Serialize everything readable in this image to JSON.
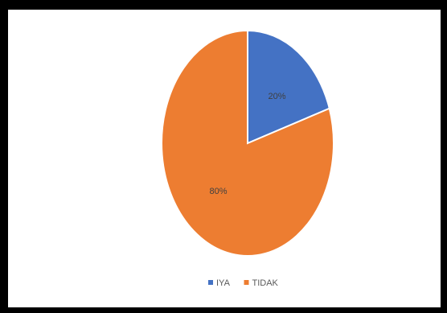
{
  "chart_data": {
    "type": "pie",
    "title": "",
    "start_angle_deg": 0,
    "direction": "clockwise",
    "slices": [
      {
        "name": "IYA",
        "value": 20,
        "label": "20%",
        "color": "#4472C4"
      },
      {
        "name": "TIDAK",
        "value": 80,
        "label": "80%",
        "color": "#ED7D31"
      }
    ],
    "legend": {
      "position": "bottom",
      "entries": [
        "IYA",
        "TIDAK"
      ]
    }
  }
}
